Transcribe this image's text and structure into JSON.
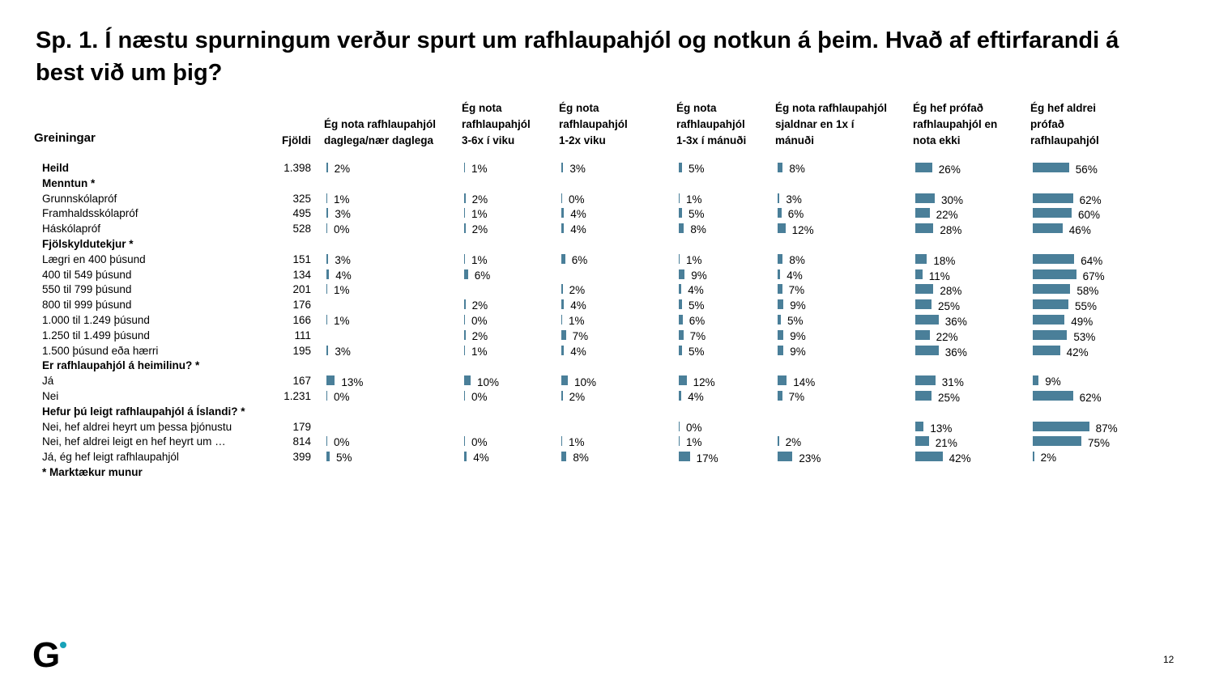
{
  "title": "Sp. 1. Í næstu spurningum verður spurt um rafhlaupahjól og notkun á þeim.  Hvað af eftirfarandi á best við um þig?",
  "header": {
    "greiningar": "Greiningar",
    "fjoldi": "Fjöldi"
  },
  "chart_data": {
    "type": "bar",
    "orientation": "horizontal",
    "unit": "%",
    "series_names": [
      "Ég nota rafhlaupahjól\ndaglega/nær daglega",
      "Ég nota\nrafhlaupahjól\n3-6x í viku",
      "Ég nota\nrafhlaupahjól\n1-2x viku",
      "Ég nota\nrafhlaupahjól\n1-3x í mánuði",
      "Ég nota rafhlaupahjól\nsjaldnar en 1x í\nmánuði",
      "Ég hef prófað\nrafhlaupahjól en\nnota ekki",
      "Ég hef aldrei\nprófað\nrafhlaupahjól"
    ],
    "rows": [
      {
        "label": "Heild",
        "bold": true,
        "n": "1.398",
        "values": [
          2,
          1,
          3,
          5,
          8,
          26,
          56
        ]
      },
      {
        "label": "Menntun *",
        "bold": true,
        "n": "",
        "values": [
          null,
          null,
          null,
          null,
          null,
          null,
          null
        ]
      },
      {
        "label": "Grunnskólapróf",
        "bold": false,
        "n": "325",
        "values": [
          1,
          2,
          0,
          1,
          3,
          30,
          62
        ]
      },
      {
        "label": "Framhaldsskólapróf",
        "bold": false,
        "n": "495",
        "values": [
          3,
          1,
          4,
          5,
          6,
          22,
          60
        ]
      },
      {
        "label": "Háskólapróf",
        "bold": false,
        "n": "528",
        "values": [
          0,
          2,
          4,
          8,
          12,
          28,
          46
        ]
      },
      {
        "label": "Fjölskyldutekjur *",
        "bold": true,
        "n": "",
        "values": [
          null,
          null,
          null,
          null,
          null,
          null,
          null
        ]
      },
      {
        "label": "Lægri en 400 þúsund",
        "bold": false,
        "n": "151",
        "values": [
          3,
          1,
          6,
          1,
          8,
          18,
          64
        ]
      },
      {
        "label": "400 til 549 þúsund",
        "bold": false,
        "n": "134",
        "values": [
          4,
          6,
          null,
          9,
          4,
          11,
          67
        ]
      },
      {
        "label": "550 til 799 þúsund",
        "bold": false,
        "n": "201",
        "values": [
          1,
          null,
          2,
          4,
          7,
          28,
          58
        ]
      },
      {
        "label": "800 til 999 þúsund",
        "bold": false,
        "n": "176",
        "values": [
          null,
          2,
          4,
          5,
          9,
          25,
          55
        ]
      },
      {
        "label": "1.000 til 1.249 þúsund",
        "bold": false,
        "n": "166",
        "values": [
          1,
          0,
          1,
          6,
          5,
          36,
          49
        ]
      },
      {
        "label": "1.250 til 1.499 þúsund",
        "bold": false,
        "n": "111",
        "values": [
          null,
          2,
          7,
          7,
          9,
          22,
          53
        ]
      },
      {
        "label": "1.500 þúsund eða hærri",
        "bold": false,
        "n": "195",
        "values": [
          3,
          1,
          4,
          5,
          9,
          36,
          42
        ]
      },
      {
        "label": "Er rafhlaupahjól á heimilinu? *",
        "bold": true,
        "n": "",
        "values": [
          null,
          null,
          null,
          null,
          null,
          null,
          null
        ]
      },
      {
        "label": "Já",
        "bold": false,
        "n": "167",
        "values": [
          13,
          10,
          10,
          12,
          14,
          31,
          9
        ]
      },
      {
        "label": "Nei",
        "bold": false,
        "n": "1.231",
        "values": [
          0,
          0,
          2,
          4,
          7,
          25,
          62
        ]
      },
      {
        "label": "Hefur þú leigt rafhlaupahjól á Íslandi? *",
        "bold": true,
        "n": "",
        "values": [
          null,
          null,
          null,
          null,
          null,
          null,
          null
        ]
      },
      {
        "label": "Nei, hef aldrei heyrt um þessa þjónustu",
        "bold": false,
        "n": "179",
        "values": [
          null,
          null,
          null,
          0,
          null,
          13,
          87
        ]
      },
      {
        "label": "Nei, hef aldrei leigt en hef heyrt um …",
        "bold": false,
        "n": "814",
        "values": [
          0,
          0,
          1,
          1,
          2,
          21,
          75
        ]
      },
      {
        "label": "Já, ég hef leigt rafhlaupahjól",
        "bold": false,
        "n": "399",
        "values": [
          5,
          4,
          8,
          17,
          23,
          42,
          2
        ]
      },
      {
        "label": "* Marktækur munur",
        "bold": true,
        "n": "",
        "values": [
          null,
          null,
          null,
          null,
          null,
          null,
          null
        ]
      }
    ]
  },
  "colors": {
    "bar": "#4a7f99",
    "logo_dot": "#17a2b8"
  },
  "footer": {
    "logo": "G",
    "page_number": "12"
  }
}
